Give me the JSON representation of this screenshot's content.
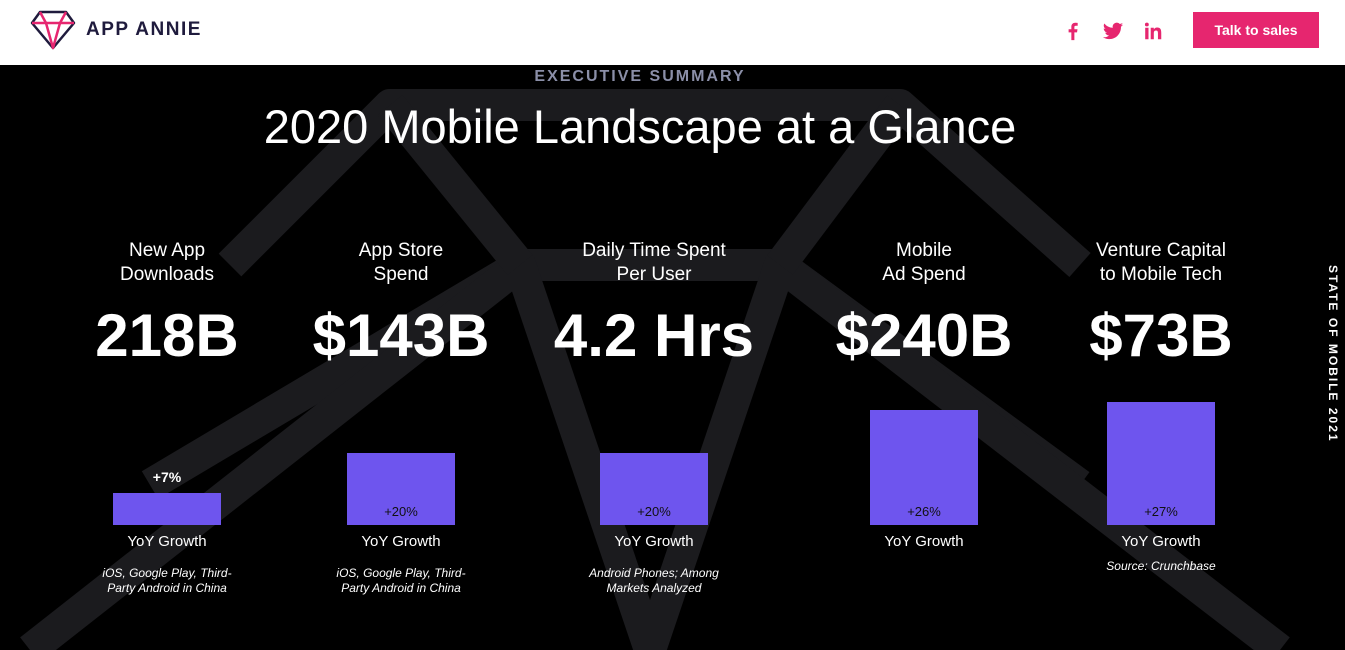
{
  "header": {
    "brand": "APP ANNIE",
    "social": [
      "facebook-icon",
      "twitter-icon",
      "linkedin-icon"
    ],
    "cta_label": "Talk to sales"
  },
  "hero": {
    "eyebrow": "EXECUTIVE SUMMARY",
    "title": "2020 Mobile Landscape at a Glance",
    "side_tab": "STATE OF MOBILE 2021"
  },
  "colors": {
    "accent": "#e6266f",
    "bar": "#6e55ee",
    "background": "#000000",
    "brand_text": "#1f1b3d"
  },
  "stats": [
    {
      "label_line1": "New App",
      "label_line2": "Downloads",
      "value": "218B",
      "growth": "+7%",
      "growth_pct": 7,
      "yoy_label": "YoY Growth",
      "note_line1": "iOS, Google Play, Third-",
      "note_line2": "Party Android in China"
    },
    {
      "label_line1": "App Store",
      "label_line2": "Spend",
      "value": "$143B",
      "growth": "+20%",
      "growth_pct": 20,
      "yoy_label": "YoY Growth",
      "note_line1": "iOS, Google Play, Third-",
      "note_line2": "Party Android in China"
    },
    {
      "label_line1": "Daily Time Spent",
      "label_line2": "Per User",
      "value": "4.2 Hrs",
      "growth": "+20%",
      "growth_pct": 20,
      "yoy_label": "YoY Growth",
      "note_line1": "Android Phones; Among",
      "note_line2": "Markets Analyzed"
    },
    {
      "label_line1": "Mobile",
      "label_line2": "Ad Spend",
      "value": "$240B",
      "growth": "+26%",
      "growth_pct": 26,
      "yoy_label": "YoY Growth",
      "note_line1": "",
      "note_line2": ""
    },
    {
      "label_line1": "Venture Capital",
      "label_line2": "to Mobile Tech",
      "value": "$73B",
      "growth": "+27%",
      "growth_pct": 27,
      "yoy_label": "YoY Growth",
      "note_line1": "Source: Crunchbase",
      "note_line2": ""
    }
  ]
}
